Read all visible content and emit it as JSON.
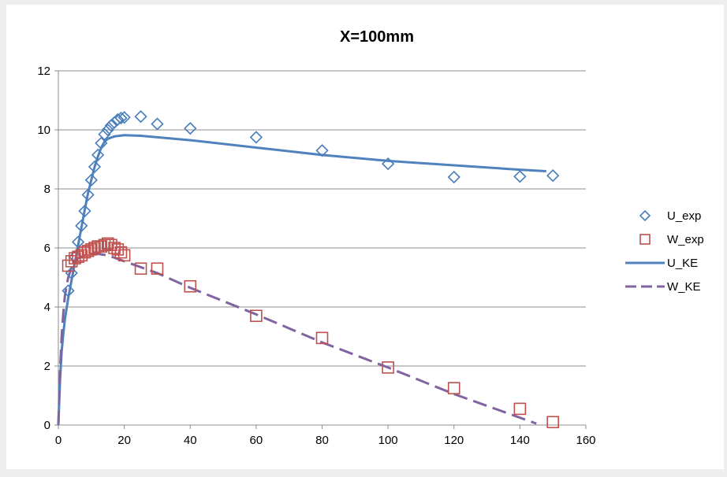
{
  "chart_data": {
    "type": "scatter",
    "title": "X=100mm",
    "xlabel": "",
    "ylabel": "",
    "xlim": [
      0,
      160
    ],
    "ylim": [
      0,
      12
    ],
    "xticks": [
      0,
      20,
      40,
      60,
      80,
      100,
      120,
      140,
      160
    ],
    "yticks": [
      0,
      2,
      4,
      6,
      8,
      10,
      12
    ],
    "grid": "horizontal",
    "legend_position": "right",
    "series": [
      {
        "name": "U_exp",
        "kind": "marker",
        "marker": "diamond",
        "color": "#4a7ebb",
        "points": [
          [
            3,
            4.55
          ],
          [
            4,
            5.15
          ],
          [
            5,
            5.7
          ],
          [
            6,
            6.2
          ],
          [
            7,
            6.75
          ],
          [
            8,
            7.25
          ],
          [
            9,
            7.8
          ],
          [
            10,
            8.3
          ],
          [
            11,
            8.75
          ],
          [
            12,
            9.15
          ],
          [
            13,
            9.55
          ],
          [
            14,
            9.85
          ],
          [
            15,
            10.0
          ],
          [
            16,
            10.15
          ],
          [
            17,
            10.25
          ],
          [
            18,
            10.35
          ],
          [
            19,
            10.4
          ],
          [
            20,
            10.42
          ],
          [
            25,
            10.45
          ],
          [
            30,
            10.2
          ],
          [
            40,
            10.05
          ],
          [
            60,
            9.75
          ],
          [
            80,
            9.3
          ],
          [
            100,
            8.85
          ],
          [
            120,
            8.4
          ],
          [
            140,
            8.42
          ],
          [
            150,
            8.45
          ]
        ]
      },
      {
        "name": "W_exp",
        "kind": "marker",
        "marker": "square",
        "color": "#c0504d",
        "points": [
          [
            3,
            5.4
          ],
          [
            4,
            5.55
          ],
          [
            5,
            5.65
          ],
          [
            6,
            5.7
          ],
          [
            7,
            5.75
          ],
          [
            8,
            5.85
          ],
          [
            9,
            5.9
          ],
          [
            10,
            5.95
          ],
          [
            11,
            6.0
          ],
          [
            12,
            6.05
          ],
          [
            13,
            6.05
          ],
          [
            14,
            6.1
          ],
          [
            15,
            6.15
          ],
          [
            16,
            6.1
          ],
          [
            17,
            6.0
          ],
          [
            18,
            5.95
          ],
          [
            19,
            5.85
          ],
          [
            20,
            5.75
          ],
          [
            25,
            5.3
          ],
          [
            30,
            5.3
          ],
          [
            40,
            4.7
          ],
          [
            60,
            3.7
          ],
          [
            80,
            2.95
          ],
          [
            100,
            1.95
          ],
          [
            120,
            1.25
          ],
          [
            140,
            0.55
          ],
          [
            150,
            0.1
          ]
        ]
      },
      {
        "name": "U_KE",
        "kind": "line",
        "dash": "solid",
        "color": "#4f81bd",
        "points": [
          [
            0,
            0
          ],
          [
            0.5,
            1.5
          ],
          [
            1,
            2.5
          ],
          [
            1.5,
            3.1
          ],
          [
            2,
            3.6
          ],
          [
            3,
            4.3
          ],
          [
            4,
            4.9
          ],
          [
            5,
            5.5
          ],
          [
            6,
            6.1
          ],
          [
            7,
            6.7
          ],
          [
            8,
            7.3
          ],
          [
            9,
            7.85
          ],
          [
            10,
            8.3
          ],
          [
            11,
            8.75
          ],
          [
            12,
            9.1
          ],
          [
            13,
            9.4
          ],
          [
            14,
            9.6
          ],
          [
            15,
            9.7
          ],
          [
            17,
            9.78
          ],
          [
            20,
            9.82
          ],
          [
            25,
            9.8
          ],
          [
            40,
            9.65
          ],
          [
            60,
            9.4
          ],
          [
            80,
            9.15
          ],
          [
            100,
            8.95
          ],
          [
            120,
            8.8
          ],
          [
            140,
            8.65
          ],
          [
            148,
            8.6
          ]
        ]
      },
      {
        "name": "W_KE",
        "kind": "line",
        "dash": "dashed",
        "color": "#8064a2",
        "points": [
          [
            0,
            0
          ],
          [
            0.5,
            1.8
          ],
          [
            1,
            3.0
          ],
          [
            1.5,
            3.8
          ],
          [
            2,
            4.4
          ],
          [
            3,
            5.0
          ],
          [
            4,
            5.35
          ],
          [
            5,
            5.55
          ],
          [
            6,
            5.65
          ],
          [
            8,
            5.75
          ],
          [
            10,
            5.8
          ],
          [
            12,
            5.8
          ],
          [
            15,
            5.75
          ],
          [
            20,
            5.55
          ],
          [
            30,
            5.15
          ],
          [
            40,
            4.65
          ],
          [
            60,
            3.75
          ],
          [
            80,
            2.8
          ],
          [
            100,
            1.95
          ],
          [
            120,
            1.05
          ],
          [
            140,
            0.25
          ],
          [
            145,
            0.05
          ]
        ]
      }
    ]
  }
}
